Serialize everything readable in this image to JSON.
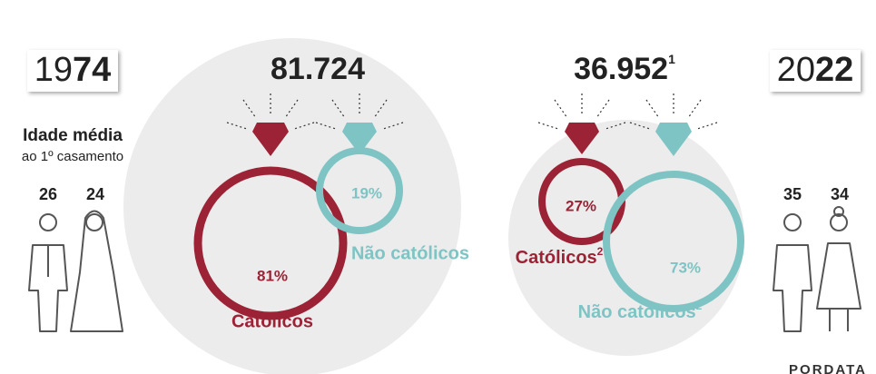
{
  "left": {
    "year_light": "19",
    "year_bold": "74",
    "age_title": "Idade média",
    "age_subtitle": "ao 1º casamento",
    "groom_age": "26",
    "bride_age": "24"
  },
  "panel_1974": {
    "total": "81.724",
    "catholic_pct": "81%",
    "catholic_label": "Católicos",
    "non_catholic_pct": "19%",
    "non_catholic_label": "Não católicos"
  },
  "panel_2022": {
    "total": "36.952",
    "total_note": "1",
    "catholic_pct": "27%",
    "catholic_label": "Católicos",
    "catholic_note": "2",
    "non_catholic_pct": "73%",
    "non_catholic_label": "Não católicos",
    "non_catholic_note": "2"
  },
  "right": {
    "year_light": "20",
    "year_bold": "22",
    "groom_age": "35",
    "bride_age": "34"
  },
  "source": "PORDATA"
}
